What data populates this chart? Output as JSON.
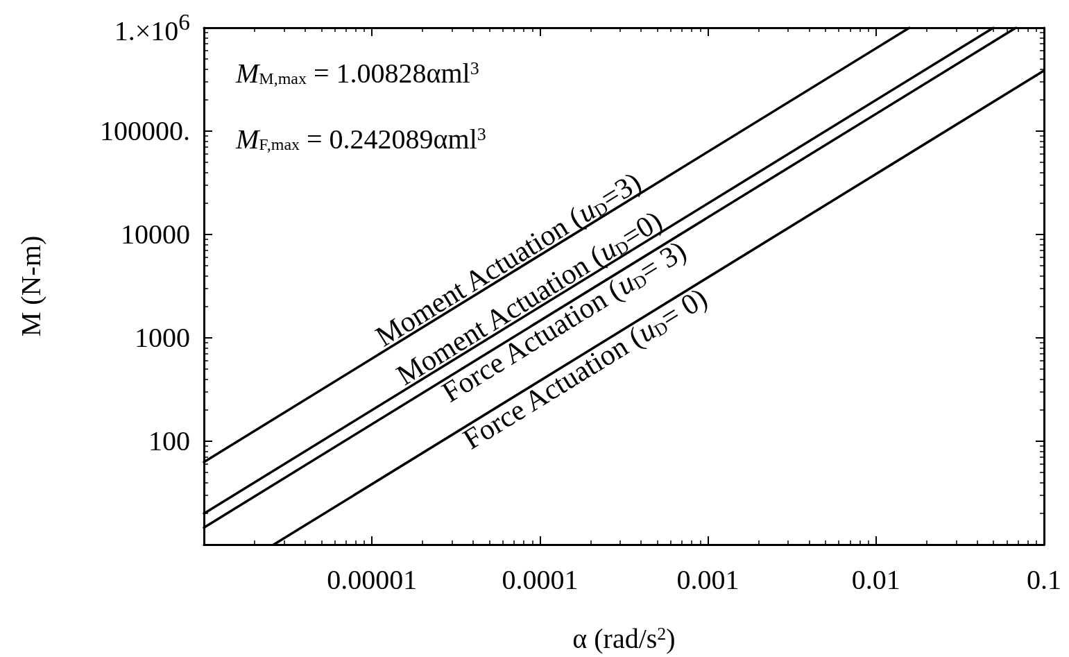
{
  "chart_data": {
    "type": "line",
    "xlabel": "α (rad/s$^{2}$)",
    "ylabel": "M (N-m)",
    "log": "xy",
    "grid": false,
    "legend": false,
    "marker": "none",
    "line_style": "solid",
    "xlim": [
      1e-06,
      0.1
    ],
    "ylim": [
      10,
      1000000
    ],
    "xticks": [
      {
        "value": 1e-05,
        "label": "0.00001"
      },
      0.0001,
      0.001,
      0.01,
      0.1
    ],
    "yticks": [
      100,
      1000,
      10000,
      {
        "value": 100000,
        "label": "100000."
      },
      {
        "value": 1000000,
        "label": "1.×10$^{6}$"
      }
    ],
    "annotations": [
      "M$_{M,max}$ = 1.00828αml$^{3}$",
      "M$_{F,max}$ = 0.242089αml$^{3}$"
    ],
    "series": [
      {
        "name": "Moment Actuation (u$_{D}$=3)",
        "color": "#000000",
        "x": [
          1e-06,
          0.0158
        ],
        "values": [
          63,
          1000000
        ]
      },
      {
        "name": "Moment Actuation (u$_{D}$=0)",
        "color": "#000000",
        "x": [
          1e-06,
          0.05
        ],
        "values": [
          20,
          1000000
        ]
      },
      {
        "name": "Force Actuation (u$_{D}$= 3)",
        "color": "#000000",
        "x": [
          1e-06,
          0.068
        ],
        "values": [
          14.6,
          1000000
        ]
      },
      {
        "name": "Force Actuation (u$_{D}$= 0)",
        "color": "#000000",
        "x": [
          2.6e-06,
          0.1
        ],
        "values": [
          10,
          385000
        ]
      }
    ]
  }
}
